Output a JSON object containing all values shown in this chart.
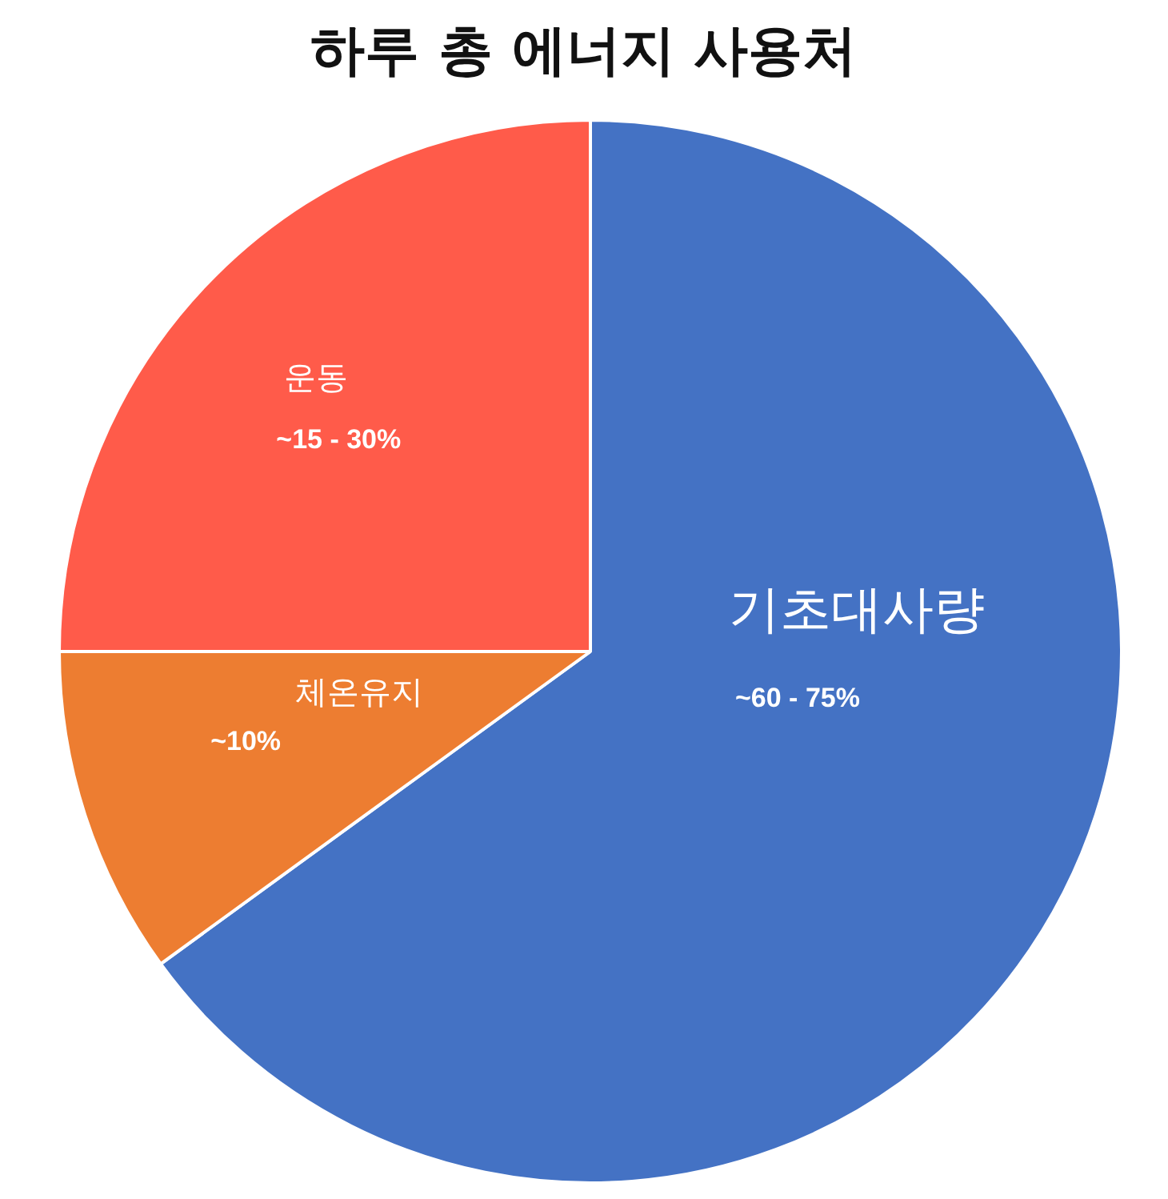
{
  "chart_data": {
    "type": "pie",
    "title": "하루 총 에너지 사용처",
    "categories": [
      "기초대사량",
      "체온유지",
      "운동"
    ],
    "values": [
      65,
      10,
      25
    ],
    "colors": [
      "#4472c4",
      "#ed7d31",
      "#ff5b4a"
    ],
    "annotations": [
      {
        "text": "~60 - 75%",
        "x": "기초대사량"
      },
      {
        "text": "~10%",
        "x": "체온유지"
      },
      {
        "text": "~15 - 30%",
        "x": "운동"
      }
    ],
    "legend": false
  }
}
